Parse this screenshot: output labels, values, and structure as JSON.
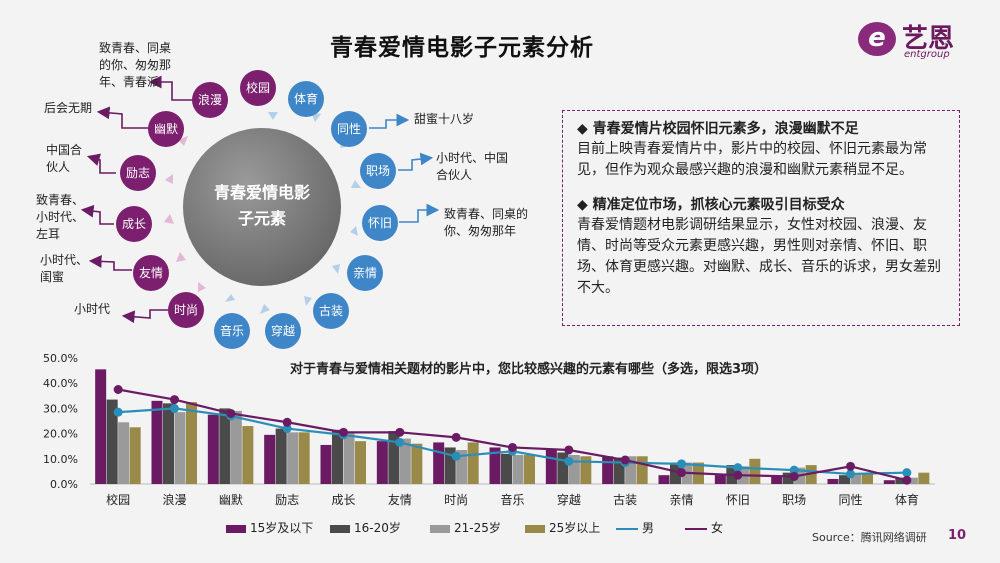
{
  "title": "青春爱情电影子元素分析",
  "logo": {
    "cn": "艺恩",
    "en": "entgroup",
    "mark": "e"
  },
  "hub": {
    "line1": "青春爱情电影",
    "line2": "子元素"
  },
  "nodes": [
    "校园",
    "体育",
    "同性",
    "职场",
    "怀旧",
    "亲情",
    "古装",
    "穿越",
    "音乐",
    "时尚",
    "友情",
    "成长",
    "励志",
    "幽默",
    "浪漫"
  ],
  "annotations": {
    "langman": [
      "致青春、同桌",
      "的你、匆匆那",
      "年、青春派"
    ],
    "youmo": [
      "后会无期"
    ],
    "lizhi": [
      "中国合",
      "伙人"
    ],
    "chengzhang": [
      "致青春、",
      "小时代、",
      "左耳"
    ],
    "youqing": [
      "小时代、",
      "闺蜜"
    ],
    "shishang": [
      "小时代"
    ],
    "tongxing": [
      "甜蜜十八岁"
    ],
    "zhichang": [
      "小时代、中国",
      "合伙人"
    ],
    "huaijiu": [
      "致青春、同桌的",
      "你、匆匆那年"
    ]
  },
  "textbox": {
    "h1": "◆  青春爱情片校园怀旧元素多，浪漫幽默不足",
    "p1": "目前上映青春爱情片中，影片中的校园、怀旧元素最为常见，但作为观众最感兴趣的浪漫和幽默元素稍显不足。",
    "h2": "◆  精准定位市场，抓核心元素吸引目标受众",
    "p2": "青春爱情题材电影调研结果显示，女性对校园、浪漫、友情、时尚等受众元素更感兴趣，男性则对亲情、怀旧、职场、体育更感兴趣。对幽默、成长、音乐的诉求，男女差别不大。"
  },
  "source": "Source：腾讯网络调研",
  "page_number": "10",
  "chart_data": {
    "type": "bar",
    "title": "对于青春与爱情相关题材的影片中，您比较感兴趣的元素有哪些（多选，限选3项）",
    "categories": [
      "校园",
      "浪漫",
      "幽默",
      "励志",
      "成长",
      "友情",
      "时尚",
      "音乐",
      "穿越",
      "古装",
      "亲情",
      "怀旧",
      "职场",
      "同性",
      "体育"
    ],
    "ylim": [
      0,
      50
    ],
    "yticks": [
      "0.0%",
      "10.0%",
      "20.0%",
      "30.0%",
      "40.0%",
      "50.0%"
    ],
    "series": [
      {
        "name": "15岁及以下",
        "kind": "bar",
        "color": "#6a1b63",
        "values": [
          45.5,
          33.0,
          27.5,
          19.5,
          15.5,
          17.0,
          16.5,
          14.5,
          13.5,
          11.0,
          3.5,
          3.5,
          3.0,
          2.0,
          1.5
        ]
      },
      {
        "name": "16-20岁",
        "kind": "bar",
        "color": "#4a4a4a",
        "values": [
          33.5,
          32.0,
          30.0,
          22.0,
          21.5,
          21.0,
          14.5,
          12.0,
          12.5,
          10.5,
          8.5,
          7.5,
          4.5,
          3.5,
          2.5
        ]
      },
      {
        "name": "21-25岁",
        "kind": "bar",
        "color": "#9a9a9a",
        "values": [
          24.5,
          28.5,
          29.0,
          20.5,
          20.0,
          18.0,
          13.5,
          11.5,
          11.5,
          11.0,
          8.5,
          7.0,
          6.5,
          4.0,
          2.5
        ]
      },
      {
        "name": "25岁以上",
        "kind": "bar",
        "color": "#9a8a4a",
        "values": [
          22.5,
          32.5,
          23.0,
          20.5,
          17.0,
          16.0,
          16.5,
          11.5,
          11.0,
          11.0,
          8.5,
          10.0,
          7.5,
          4.0,
          4.5
        ]
      },
      {
        "name": "男",
        "kind": "line",
        "color": "#2a8fb8",
        "values": [
          28.5,
          30.0,
          27.0,
          22.0,
          19.5,
          16.5,
          11.0,
          13.0,
          9.0,
          8.5,
          8.0,
          6.5,
          5.5,
          4.0,
          4.5
        ]
      },
      {
        "name": "女",
        "kind": "line",
        "color": "#6a1b63",
        "values": [
          37.5,
          33.5,
          28.0,
          24.5,
          20.5,
          20.5,
          18.5,
          14.5,
          13.5,
          9.5,
          4.5,
          3.5,
          3.0,
          7.0,
          1.5
        ]
      }
    ]
  }
}
